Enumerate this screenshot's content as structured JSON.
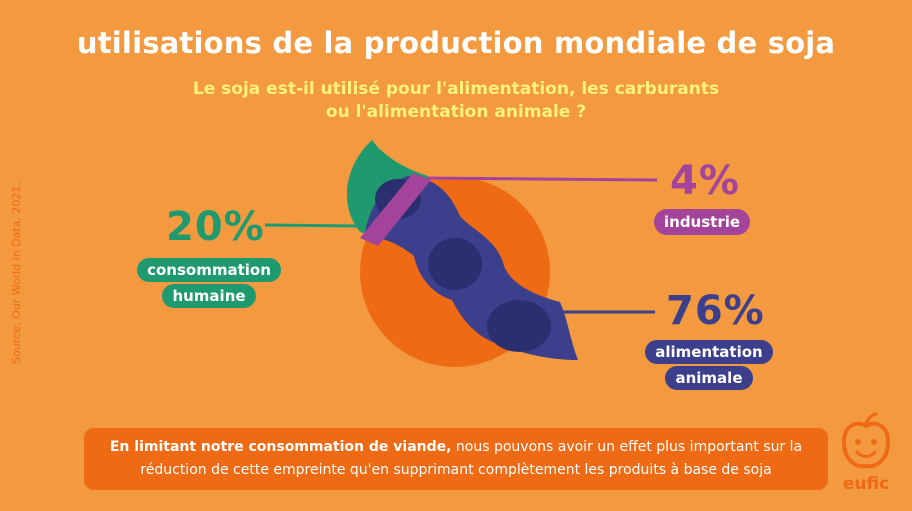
{
  "title": "utilisations de la production mondiale de soja",
  "subtitle_line1": "Le soja est-il utilisé pour l'alimentation, les carburants",
  "subtitle_line2": "ou l'alimentation animale ?",
  "source": "Source: Our World in Data, 2021.",
  "colors": {
    "background": "#f39a40",
    "human": "#1f9a6e",
    "industry": "#a3449a",
    "animal": "#3b3f8c",
    "orange_circle": "#ef6a14",
    "title": "#ffffff",
    "subtitle": "#fff27a"
  },
  "chart_data": {
    "type": "pie",
    "title": "utilisations de la production mondiale de soja",
    "unit": "%",
    "slices": [
      {
        "label": "consommation humaine",
        "value": 20,
        "display": "20%",
        "color": "#1f9a6e"
      },
      {
        "label": "industrie",
        "value": 4,
        "display": "4%",
        "color": "#a3449a"
      },
      {
        "label": "alimentation animale",
        "value": 76,
        "display": "76%",
        "color": "#3b3f8c"
      }
    ]
  },
  "labels": {
    "human_pct": "20%",
    "human_line1": "consommation",
    "human_line2": "humaine",
    "industry_pct": "4%",
    "industry_label": "industrie",
    "animal_pct": "76%",
    "animal_line1": "alimentation",
    "animal_line2": "animale"
  },
  "note": {
    "bold": "En limitant notre consommation de viande,",
    "rest": " nous pouvons avoir un effet plus important sur la réduction de cette empreinte qu'en supprimant complètement les produits à base de soja"
  },
  "logo": {
    "text": "eufic",
    "icon": "apple-face-icon"
  }
}
